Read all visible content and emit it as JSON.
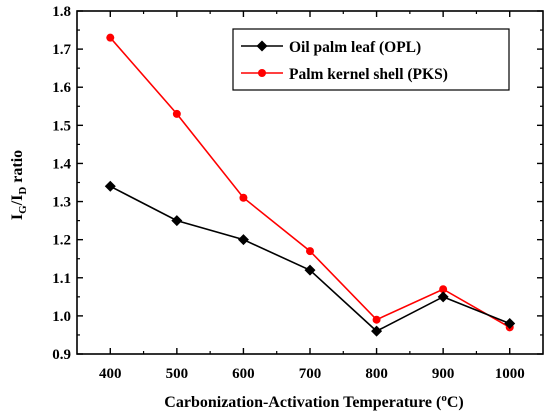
{
  "chart_data": {
    "type": "line",
    "title": "",
    "xlabel": "Carbonization-Activation Temperature (",
    "xlabel_unit_sup": "o",
    "xlabel_unit_tail": "C)",
    "ylabel_parts": {
      "a": "I",
      "a_sub": "G",
      "slash": "/I",
      "b_sub": "D",
      "tail": " ratio"
    },
    "x": [
      400,
      500,
      600,
      700,
      800,
      900,
      1000
    ],
    "xlim": [
      350,
      1050
    ],
    "ylim": [
      0.9,
      1.8
    ],
    "x_ticks": [
      "400",
      "500",
      "600",
      "700",
      "800",
      "900",
      "1000"
    ],
    "y_ticks": [
      "0.9",
      "1.0",
      "1.1",
      "1.2",
      "1.3",
      "1.4",
      "1.5",
      "1.6",
      "1.7",
      "1.8"
    ],
    "legend_position": "top-right",
    "grid": false,
    "series": [
      {
        "name": "Oil palm leaf (OPL)",
        "color": "#000000",
        "marker": "diamond",
        "values": [
          1.34,
          1.25,
          1.2,
          1.12,
          0.96,
          1.05,
          0.98
        ]
      },
      {
        "name": "Palm kernel shell (PKS)",
        "color": "#ff0000",
        "marker": "circle",
        "values": [
          1.73,
          1.53,
          1.31,
          1.17,
          0.99,
          1.07,
          0.97
        ]
      }
    ]
  }
}
